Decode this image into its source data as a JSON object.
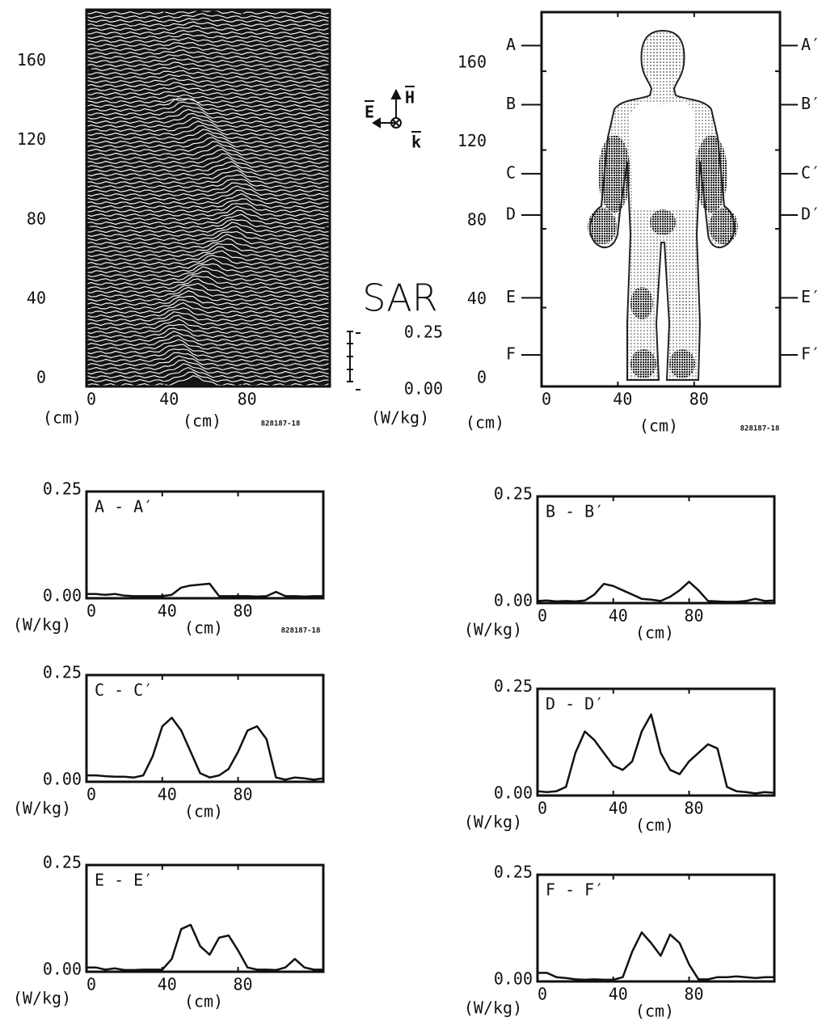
{
  "chart_data": [
    {
      "type": "waterfall",
      "xlim": [
        0,
        125
      ],
      "ylim": [
        0,
        190
      ],
      "xticks": [
        0,
        40,
        80
      ],
      "yticks": [
        0,
        40,
        80,
        120,
        160
      ],
      "xlabel": "(cm)",
      "ylabel": "(cm)",
      "code": "828187-18",
      "field_labels": [
        "E",
        "H",
        "k"
      ],
      "colorbar": {
        "title": "SAR",
        "ticks": [
          0.25,
          {
            "value": 0,
            "label": "0.00"
          }
        ],
        "unit": "(W/kg)"
      }
    },
    {
      "type": "cross-section",
      "xlim": [
        0,
        125
      ],
      "ylim": [
        0,
        190
      ],
      "xticks": [
        0,
        40,
        80
      ],
      "yticks": [
        0,
        40,
        80,
        120,
        160
      ],
      "xlabel": "(cm)",
      "ylabel": "(cm)",
      "code": "828187-18",
      "sections": [
        {
          "label": "A",
          "label_end": "A′",
          "y": 173
        },
        {
          "label": "B",
          "label_end": "B′",
          "y": 143
        },
        {
          "label": "C",
          "label_end": "C′",
          "y": 108
        },
        {
          "label": "D",
          "label_end": "D′",
          "y": 87
        },
        {
          "label": "E",
          "label_end": "E′",
          "y": 45
        },
        {
          "label": "F",
          "label_end": "F′",
          "y": 16
        }
      ]
    },
    {
      "type": "line",
      "title": "A - A′",
      "xlim": [
        0,
        125
      ],
      "ylim": [
        0,
        0.25
      ],
      "xticks": [
        0,
        40,
        80
      ],
      "yticks": [
        {
          "value": 0,
          "label": "0.00"
        },
        0.25
      ],
      "xlabel": "(cm)",
      "ylabel": "(W/kg)",
      "code": "828187-18",
      "x": [
        0,
        5,
        10,
        15,
        20,
        25,
        30,
        35,
        40,
        45,
        50,
        55,
        60,
        65,
        70,
        75,
        80,
        85,
        90,
        95,
        100,
        105,
        110,
        115,
        120,
        125
      ],
      "values": [
        0.01,
        0.01,
        0.008,
        0.01,
        0.006,
        0.005,
        0.005,
        0.005,
        0.005,
        0.008,
        0.025,
        0.03,
        0.032,
        0.034,
        0.005,
        0.005,
        0.005,
        0.005,
        0.004,
        0.005,
        0.015,
        0.005,
        0.005,
        0.004,
        0.005,
        0.005
      ]
    },
    {
      "type": "line",
      "title": "B - B′",
      "xlim": [
        0,
        125
      ],
      "ylim": [
        0,
        0.25
      ],
      "xticks": [
        0,
        40,
        80
      ],
      "yticks": [
        {
          "value": 0,
          "label": "0.00"
        },
        0.25
      ],
      "xlabel": "(cm)",
      "ylabel": "(W/kg)",
      "x": [
        0,
        5,
        10,
        15,
        20,
        25,
        30,
        35,
        40,
        45,
        50,
        55,
        60,
        65,
        70,
        75,
        80,
        85,
        90,
        95,
        100,
        105,
        110,
        115,
        120,
        125
      ],
      "values": [
        0.005,
        0.006,
        0.004,
        0.005,
        0.004,
        0.006,
        0.02,
        0.045,
        0.04,
        0.03,
        0.02,
        0.01,
        0.008,
        0.005,
        0.015,
        0.03,
        0.05,
        0.03,
        0.005,
        0.004,
        0.003,
        0.003,
        0.005,
        0.01,
        0.005,
        0.006
      ]
    },
    {
      "type": "line",
      "title": "C - C′",
      "xlim": [
        0,
        125
      ],
      "ylim": [
        0,
        0.25
      ],
      "xticks": [
        0,
        40,
        80
      ],
      "yticks": [
        {
          "value": 0,
          "label": "0.00"
        },
        0.25
      ],
      "xlabel": "(cm)",
      "ylabel": "(W/kg)",
      "x": [
        0,
        5,
        10,
        15,
        20,
        25,
        30,
        35,
        40,
        45,
        50,
        55,
        60,
        65,
        70,
        75,
        80,
        85,
        90,
        95,
        100,
        105,
        110,
        115,
        120,
        125
      ],
      "values": [
        0.015,
        0.015,
        0.013,
        0.012,
        0.012,
        0.01,
        0.015,
        0.06,
        0.13,
        0.15,
        0.12,
        0.07,
        0.02,
        0.01,
        0.015,
        0.03,
        0.07,
        0.12,
        0.13,
        0.1,
        0.01,
        0.005,
        0.01,
        0.008,
        0.005,
        0.008
      ]
    },
    {
      "type": "line",
      "title": "D - D′",
      "xlim": [
        0,
        125
      ],
      "ylim": [
        0,
        0.25
      ],
      "xticks": [
        0,
        40,
        80
      ],
      "yticks": [
        {
          "value": 0,
          "label": "0.00"
        },
        0.25
      ],
      "xlabel": "(cm)",
      "ylabel": "(W/kg)",
      "x": [
        0,
        5,
        10,
        15,
        20,
        25,
        30,
        35,
        40,
        45,
        50,
        55,
        60,
        65,
        70,
        75,
        80,
        85,
        90,
        95,
        100,
        105,
        110,
        115,
        120,
        125
      ],
      "values": [
        0.01,
        0.008,
        0.01,
        0.02,
        0.1,
        0.15,
        0.13,
        0.1,
        0.07,
        0.06,
        0.08,
        0.15,
        0.19,
        0.1,
        0.06,
        0.05,
        0.08,
        0.1,
        0.12,
        0.11,
        0.02,
        0.01,
        0.008,
        0.005,
        0.008,
        0.006
      ]
    },
    {
      "type": "line",
      "title": "E - E′",
      "xlim": [
        0,
        125
      ],
      "ylim": [
        0,
        0.25
      ],
      "xticks": [
        0,
        40,
        80
      ],
      "yticks": [
        {
          "value": 0,
          "label": "0.00"
        },
        0.25
      ],
      "xlabel": "(cm)",
      "ylabel": "(W/kg)",
      "x": [
        0,
        5,
        10,
        15,
        20,
        25,
        30,
        35,
        40,
        45,
        50,
        55,
        60,
        65,
        70,
        75,
        80,
        85,
        90,
        95,
        100,
        105,
        110,
        115,
        120,
        125
      ],
      "values": [
        0.01,
        0.01,
        0.005,
        0.008,
        0.004,
        0.004,
        0.005,
        0.005,
        0.005,
        0.03,
        0.1,
        0.11,
        0.06,
        0.04,
        0.08,
        0.085,
        0.05,
        0.01,
        0.005,
        0.005,
        0.004,
        0.01,
        0.03,
        0.01,
        0.005,
        0.005
      ]
    },
    {
      "type": "line",
      "title": "F - F′",
      "xlim": [
        0,
        125
      ],
      "ylim": [
        0,
        0.25
      ],
      "xticks": [
        0,
        40,
        80
      ],
      "yticks": [
        {
          "value": 0,
          "label": "0.00"
        },
        0.25
      ],
      "xlabel": "(cm)",
      "ylabel": "(W/kg)",
      "x": [
        0,
        5,
        10,
        15,
        20,
        25,
        30,
        35,
        40,
        45,
        50,
        55,
        60,
        65,
        70,
        75,
        80,
        85,
        90,
        95,
        100,
        105,
        110,
        115,
        120,
        125
      ],
      "values": [
        0.02,
        0.02,
        0.01,
        0.008,
        0.005,
        0.004,
        0.005,
        0.004,
        0.004,
        0.01,
        0.07,
        0.115,
        0.09,
        0.06,
        0.11,
        0.09,
        0.04,
        0.005,
        0.005,
        0.01,
        0.01,
        0.012,
        0.01,
        0.008,
        0.01,
        0.01
      ]
    }
  ]
}
